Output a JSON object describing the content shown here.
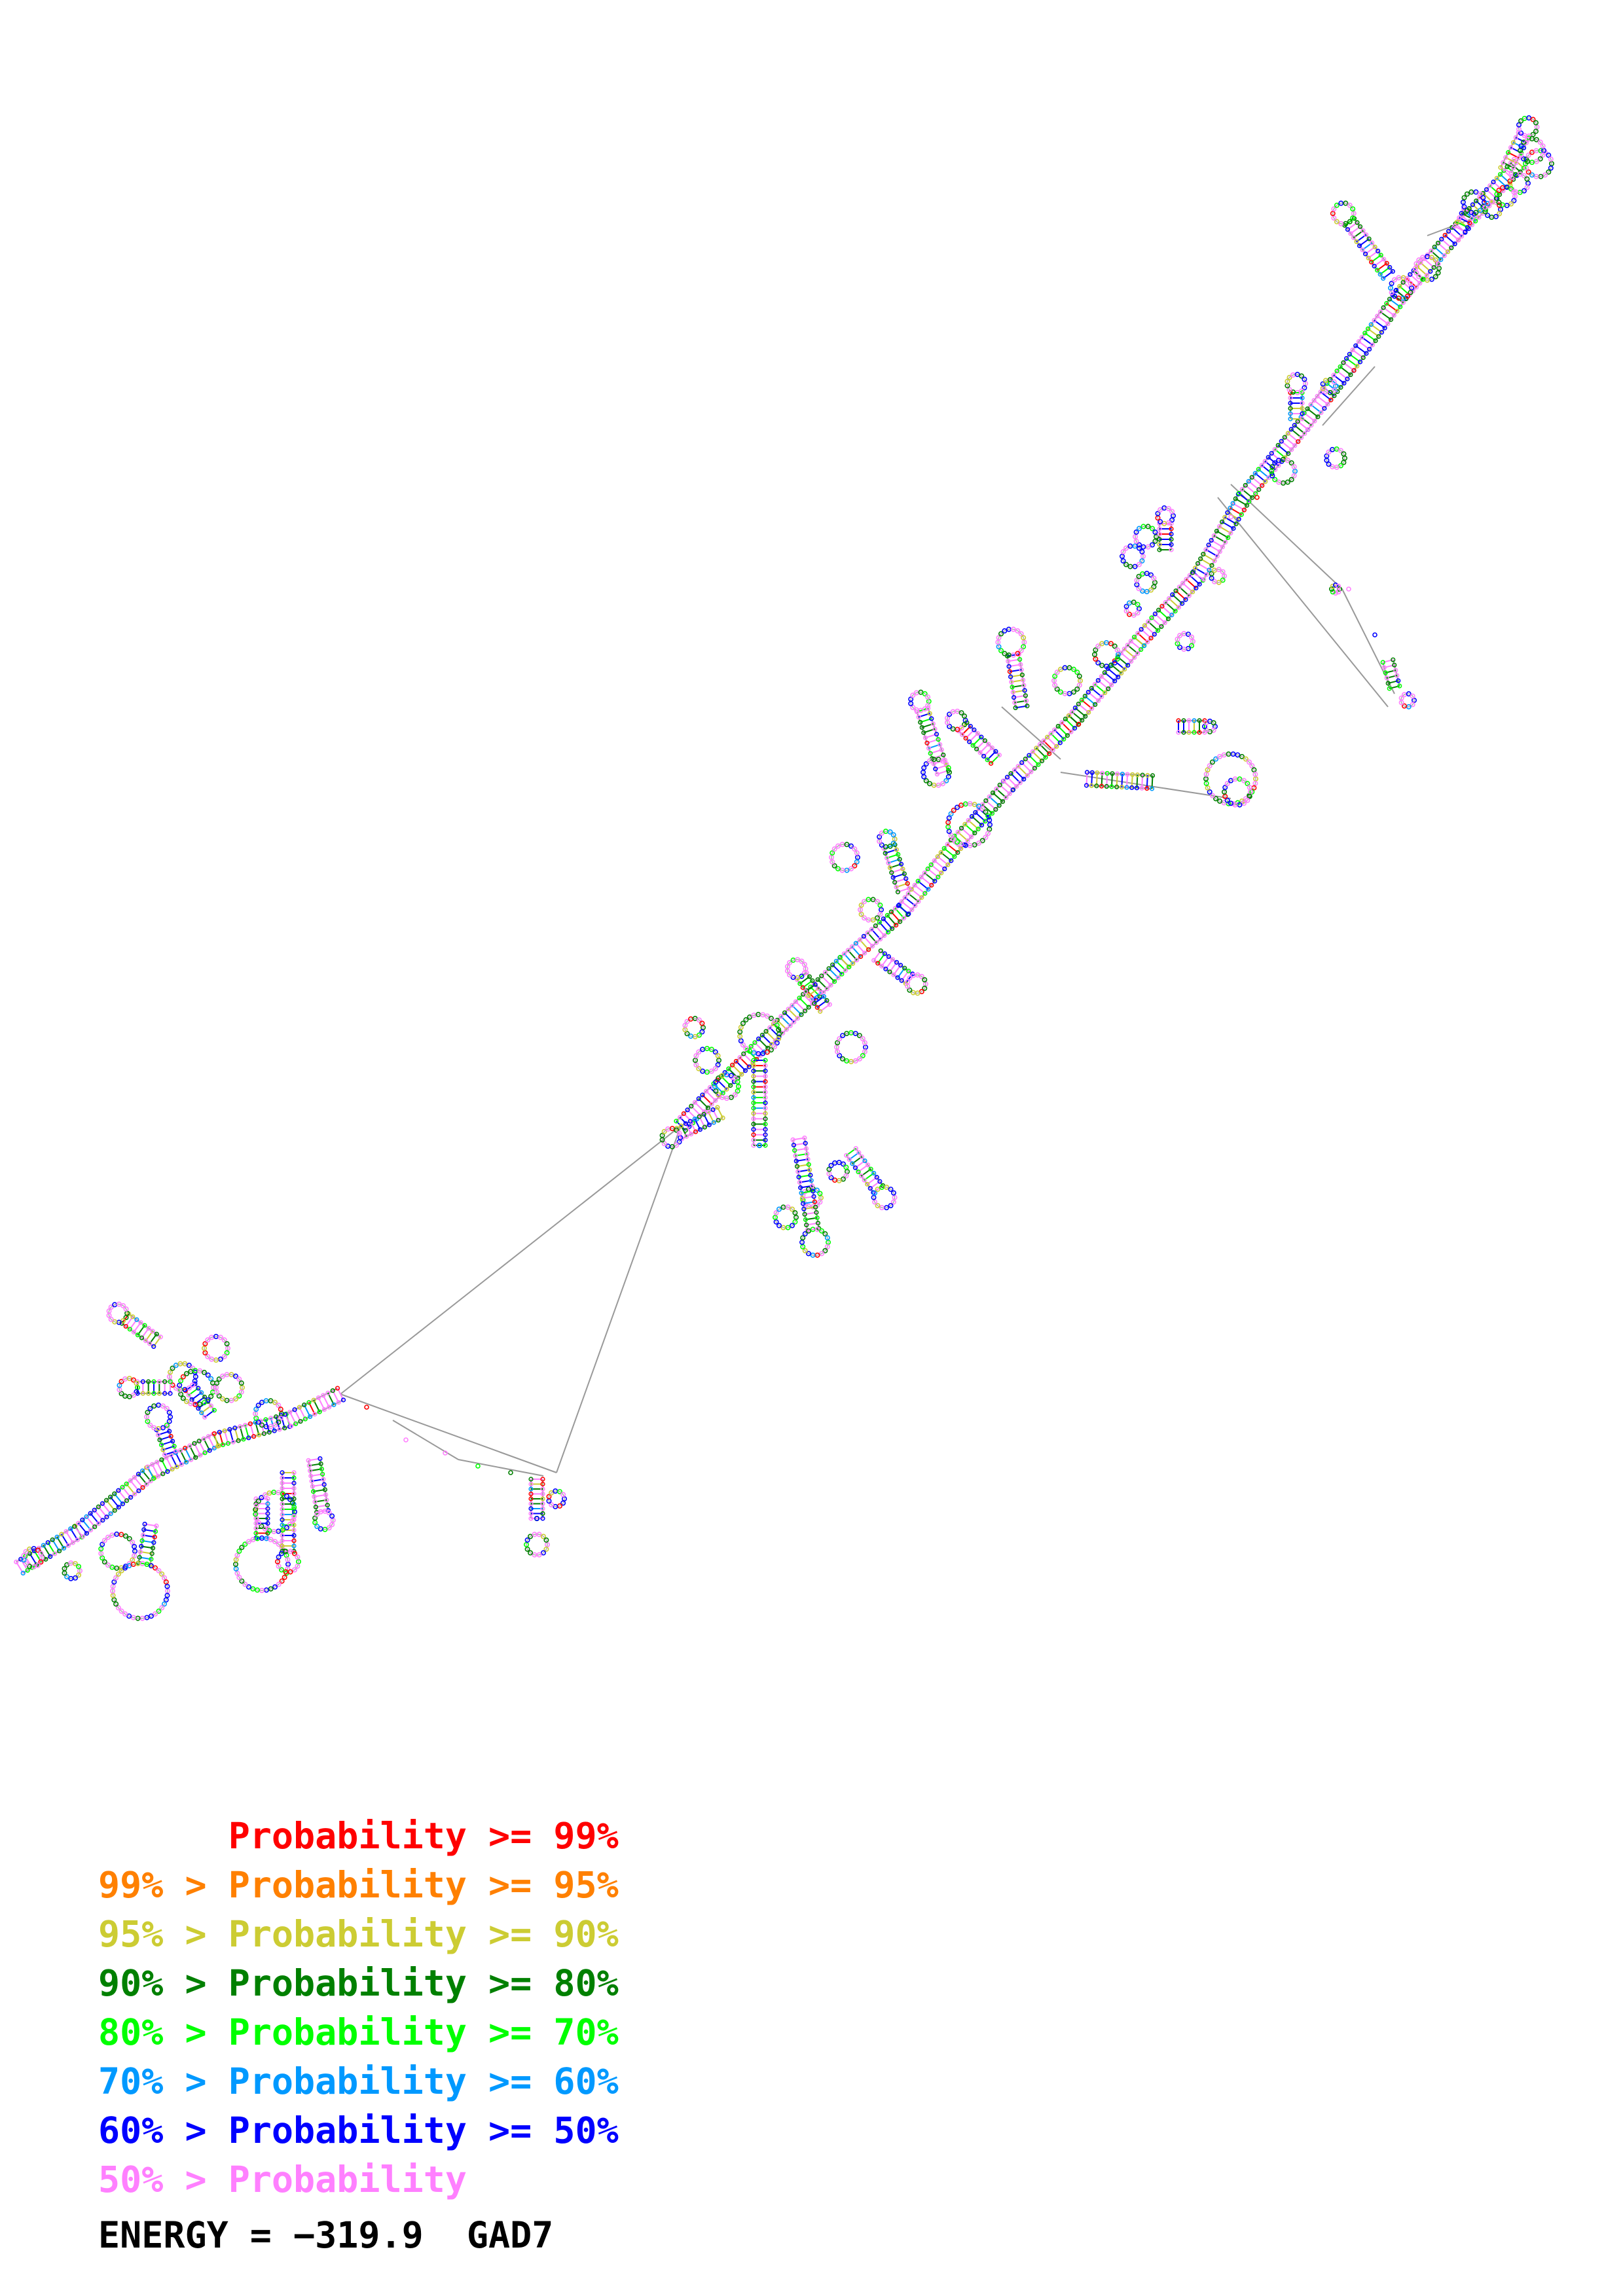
{
  "legend": [
    {
      "prefix": "",
      "label": "Probability >= 99%",
      "color": "#ff0000"
    },
    {
      "prefix": "99% > ",
      "label": "Probability >= 95%",
      "color": "#ff8000"
    },
    {
      "prefix": "95% > ",
      "label": "Probability >= 90%",
      "color": "#cccc33"
    },
    {
      "prefix": "90% > ",
      "label": "Probability >= 80%",
      "color": "#008000"
    },
    {
      "prefix": "80% > ",
      "label": "Probability >= 70%",
      "color": "#00ff00"
    },
    {
      "prefix": "70% > ",
      "label": "Probability >= 60%",
      "color": "#0099ff"
    },
    {
      "prefix": "60% > ",
      "label": "Probability >= 50%",
      "color": "#0000ff"
    },
    {
      "prefix": "50% > ",
      "label": "Probability",
      "color": "#ff80ff"
    }
  ],
  "footer": {
    "energy_text": "ENERGY = −319.9  GAD7"
  },
  "structure": {
    "type": "RNA secondary structure",
    "backbone_color": "#888888",
    "base_colors": [
      "#ff0000",
      "#ff8000",
      "#cccc33",
      "#008000",
      "#00ff00",
      "#0099ff",
      "#0000ff",
      "#ff80ff"
    ]
  }
}
